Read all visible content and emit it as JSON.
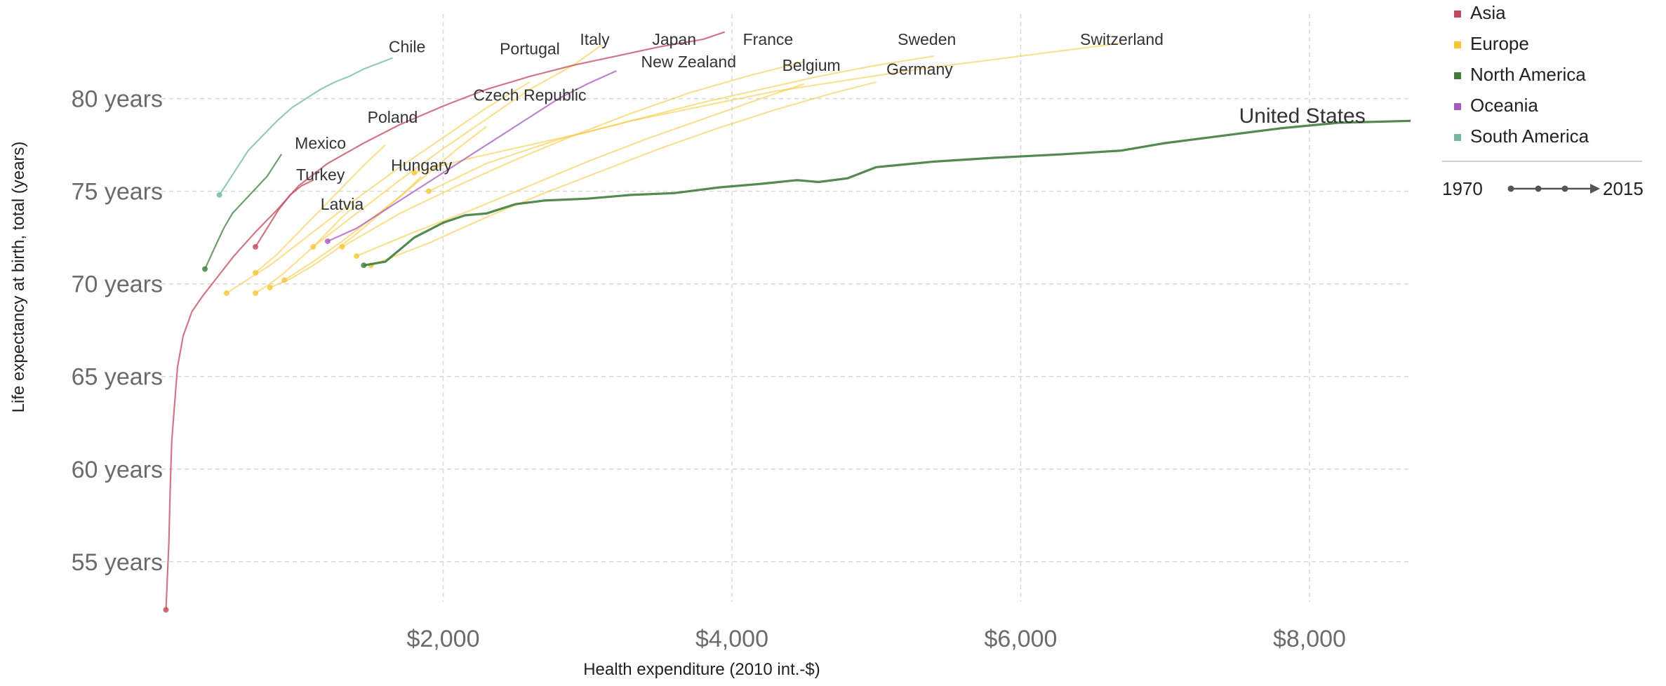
{
  "chart_data": {
    "type": "line",
    "xlabel": "Health expenditure (2010 int.-$)",
    "ylabel": "Life expectancy at birth, total (years)",
    "xlim": [
      0,
      8700
    ],
    "ylim": [
      52,
      84
    ],
    "x_ticks": [
      {
        "value": 2000,
        "label": "$2,000"
      },
      {
        "value": 4000,
        "label": "$4,000"
      },
      {
        "value": 6000,
        "label": "$6,000"
      },
      {
        "value": 8000,
        "label": "$8,000"
      }
    ],
    "y_ticks": [
      {
        "value": 55,
        "label": "55 years"
      },
      {
        "value": 60,
        "label": "60 years"
      },
      {
        "value": 65,
        "label": "65 years"
      },
      {
        "value": 70,
        "label": "70 years"
      },
      {
        "value": 75,
        "label": "75 years"
      },
      {
        "value": 80,
        "label": "80 years"
      }
    ],
    "grid": true,
    "legend_position": "top-right",
    "legend": [
      {
        "name": "Asia",
        "color": "#c04a5b"
      },
      {
        "name": "Europe",
        "color": "#f5c636"
      },
      {
        "name": "North America",
        "color": "#3f7d3c"
      },
      {
        "name": "Oceania",
        "color": "#a65bbd"
      },
      {
        "name": "South America",
        "color": "#6fb99a"
      }
    ],
    "time_legend": {
      "start": "1970",
      "end": "2015"
    },
    "series": [
      {
        "name": "United States",
        "region": "North America",
        "x": [
          1450,
          1600,
          1800,
          2000,
          2150,
          2300,
          2500,
          2700,
          3000,
          3300,
          3600,
          3900,
          4200,
          4450,
          4600,
          4800,
          5000,
          5400,
          5800,
          6300,
          6700,
          7000,
          7400,
          7800,
          8200,
          8700
        ],
        "y": [
          71.0,
          71.2,
          72.5,
          73.3,
          73.7,
          73.8,
          74.3,
          74.5,
          74.6,
          74.8,
          74.9,
          75.2,
          75.4,
          75.6,
          75.5,
          75.7,
          76.3,
          76.6,
          76.8,
          77.0,
          77.2,
          77.6,
          78.0,
          78.4,
          78.7,
          78.8
        ]
      },
      {
        "name": "Japan",
        "region": "Asia",
        "x": [
          80,
          100,
          110,
          120,
          140,
          160,
          200,
          260,
          330,
          420,
          550,
          700,
          850,
          1000,
          1200,
          1450,
          1700,
          2000,
          2300,
          2600,
          2900,
          3200,
          3500,
          3800,
          3950
        ],
        "y": [
          52.4,
          56.0,
          59.0,
          61.5,
          63.5,
          65.5,
          67.2,
          68.5,
          69.3,
          70.2,
          71.5,
          72.8,
          74.0,
          75.3,
          76.5,
          77.6,
          78.6,
          79.6,
          80.5,
          81.2,
          81.8,
          82.3,
          82.8,
          83.2,
          83.6
        ]
      },
      {
        "name": "Chile",
        "region": "South America",
        "x": [
          450,
          550,
          650,
          750,
          850,
          950,
          1050,
          1150,
          1250,
          1350,
          1450,
          1550,
          1650
        ],
        "y": [
          74.8,
          76.0,
          77.2,
          78.0,
          78.8,
          79.5,
          80.0,
          80.5,
          80.9,
          81.2,
          81.6,
          81.9,
          82.2
        ]
      },
      {
        "name": "Mexico",
        "region": "North America",
        "x": [
          350,
          420,
          480,
          540,
          600,
          660,
          720,
          780,
          830,
          880
        ],
        "y": [
          70.8,
          72.0,
          73.0,
          73.8,
          74.3,
          74.8,
          75.3,
          75.8,
          76.4,
          77.0
        ]
      },
      {
        "name": "New Zealand",
        "region": "Oceania",
        "x": [
          1200,
          1400,
          1600,
          1800,
          2000,
          2200,
          2400,
          2600,
          2800,
          3000,
          3200
        ],
        "y": [
          72.3,
          73.0,
          74.0,
          75.0,
          76.0,
          77.0,
          78.0,
          79.0,
          80.0,
          80.8,
          81.5
        ]
      },
      {
        "name": "Turkey",
        "region": "Asia",
        "x": [
          700,
          780,
          860,
          940,
          1020,
          1100
        ],
        "y": [
          72.0,
          73.0,
          74.0,
          74.8,
          75.3,
          75.6
        ]
      },
      {
        "name": "Switzerland",
        "region": "Europe",
        "x": [
          1900,
          2300,
          2800,
          3300,
          3800,
          4300,
          4800,
          5300,
          5800,
          6300,
          6700
        ],
        "y": [
          75.0,
          76.5,
          77.8,
          78.8,
          79.6,
          80.4,
          81.0,
          81.6,
          82.1,
          82.6,
          83.0
        ]
      },
      {
        "name": "Sweden",
        "region": "Europe",
        "x": [
          1800,
          2200,
          2600,
          3000,
          3400,
          3800,
          4200,
          4600,
          5000,
          5400
        ],
        "y": [
          76.0,
          76.8,
          77.5,
          78.2,
          79.0,
          79.8,
          80.5,
          81.2,
          81.8,
          82.3
        ]
      },
      {
        "name": "Germany",
        "region": "Europe",
        "x": [
          1500,
          1900,
          2300,
          2700,
          3100,
          3500,
          3900,
          4300,
          4700,
          5000
        ],
        "y": [
          71.0,
          72.2,
          73.6,
          74.9,
          76.1,
          77.3,
          78.4,
          79.4,
          80.3,
          80.9
        ]
      },
      {
        "name": "France",
        "region": "Europe",
        "x": [
          1300,
          1700,
          2100,
          2500,
          2900,
          3300,
          3700,
          4100,
          4500
        ],
        "y": [
          72.0,
          73.8,
          75.3,
          76.7,
          78.0,
          79.2,
          80.3,
          81.2,
          82.0
        ]
      },
      {
        "name": "Italy",
        "region": "Europe",
        "x": [
          1100,
          1400,
          1700,
          2000,
          2300,
          2600,
          2900,
          3100
        ],
        "y": [
          72.0,
          73.8,
          75.6,
          77.3,
          78.9,
          80.5,
          81.8,
          82.9
        ]
      },
      {
        "name": "Portugal",
        "region": "Europe",
        "x": [
          500,
          800,
          1100,
          1400,
          1700,
          2000,
          2300,
          2600
        ],
        "y": [
          69.5,
          71.0,
          72.8,
          74.6,
          76.3,
          77.9,
          79.5,
          80.9
        ]
      },
      {
        "name": "Belgium",
        "region": "Europe",
        "x": [
          1400,
          1800,
          2200,
          2600,
          3000,
          3400,
          3800,
          4200,
          4500
        ],
        "y": [
          71.5,
          72.8,
          74.0,
          75.3,
          76.6,
          77.8,
          78.9,
          80.0,
          80.8
        ]
      },
      {
        "name": "Czech Republic",
        "region": "Europe",
        "x": [
          900,
          1100,
          1300,
          1500,
          1700,
          1900,
          2100,
          2300
        ],
        "y": [
          70.2,
          71.2,
          72.3,
          73.5,
          74.7,
          76.0,
          77.3,
          78.5
        ]
      },
      {
        "name": "Poland",
        "region": "Europe",
        "x": [
          700,
          850,
          1000,
          1150,
          1300,
          1450,
          1600
        ],
        "y": [
          70.6,
          71.6,
          72.8,
          74.0,
          75.2,
          76.4,
          77.5
        ]
      },
      {
        "name": "Hungary",
        "region": "Europe",
        "x": [
          800,
          950,
          1100,
          1250,
          1400,
          1550,
          1700,
          1850
        ],
        "y": [
          69.8,
          70.3,
          71.0,
          71.8,
          72.7,
          73.7,
          74.7,
          75.8
        ]
      },
      {
        "name": "Latvia",
        "region": "Europe",
        "x": [
          700,
          800,
          900,
          1000,
          1100,
          1200,
          1300,
          1400
        ],
        "y": [
          69.5,
          70.0,
          70.6,
          71.3,
          72.0,
          72.8,
          73.6,
          74.3
        ]
      }
    ],
    "labels": [
      {
        "text": "Chile",
        "x": 1750,
        "y": 82.8
      },
      {
        "text": "Portugal",
        "x": 2600,
        "y": 82.7
      },
      {
        "text": "Italy",
        "x": 3050,
        "y": 83.2
      },
      {
        "text": "Japan",
        "x": 3600,
        "y": 83.2
      },
      {
        "text": "France",
        "x": 4250,
        "y": 83.2
      },
      {
        "text": "Sweden",
        "x": 5350,
        "y": 83.2
      },
      {
        "text": "Switzerland",
        "x": 6700,
        "y": 83.2
      },
      {
        "text": "New Zealand",
        "x": 3700,
        "y": 82.0
      },
      {
        "text": "Belgium",
        "x": 4550,
        "y": 81.8
      },
      {
        "text": "Germany",
        "x": 5300,
        "y": 81.6
      },
      {
        "text": "Czech Republic",
        "x": 2600,
        "y": 80.2
      },
      {
        "text": "Poland",
        "x": 1650,
        "y": 79.0
      },
      {
        "text": "United States",
        "x": 7950,
        "y": 79.0
      },
      {
        "text": "Mexico",
        "x": 1150,
        "y": 77.6
      },
      {
        "text": "Hungary",
        "x": 1850,
        "y": 76.4
      },
      {
        "text": "Turkey",
        "x": 1150,
        "y": 75.9
      },
      {
        "text": "Latvia",
        "x": 1300,
        "y": 74.3
      }
    ]
  }
}
